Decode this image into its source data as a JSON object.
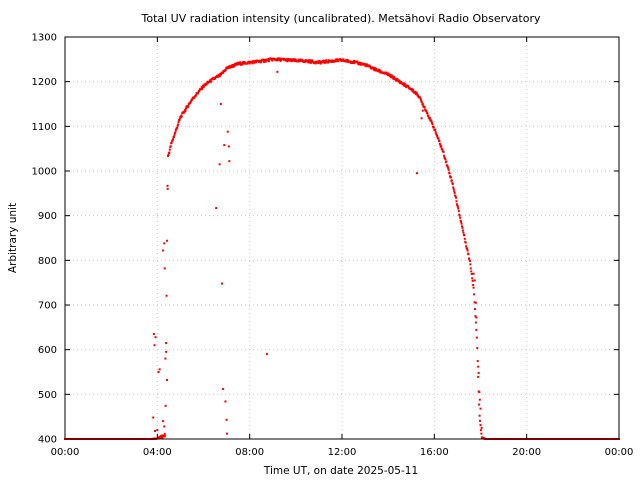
{
  "chart_data": {
    "type": "scatter",
    "title": "Total UV radiation intensity (uncalibrated). Metsähovi Radio Observatory",
    "xlabel": "Time UT, on date 2025-05-11",
    "ylabel": "Arbitrary unit",
    "xlim": [
      "00:00",
      "24:00"
    ],
    "ylim": [
      400,
      1300
    ],
    "x_ticks": [
      "00:00",
      "04:00",
      "08:00",
      "12:00",
      "16:00",
      "20:00",
      "00:00"
    ],
    "y_ticks": [
      400,
      500,
      600,
      700,
      800,
      900,
      1000,
      1100,
      1200,
      1300
    ],
    "grid": true,
    "marker_color": "#ff0000",
    "series": [
      {
        "x_unit": "hours UT",
        "profile": [
          [
            0.0,
            400
          ],
          [
            3.75,
            400
          ],
          [
            4.0,
            401
          ],
          [
            4.25,
            405
          ],
          [
            4.35,
            410
          ],
          [
            4.45,
            1030
          ],
          [
            4.6,
            1060
          ],
          [
            4.8,
            1090
          ],
          [
            5.0,
            1120
          ],
          [
            5.25,
            1140
          ],
          [
            5.5,
            1160
          ],
          [
            5.75,
            1175
          ],
          [
            6.0,
            1190
          ],
          [
            6.25,
            1200
          ],
          [
            6.5,
            1208
          ],
          [
            6.75,
            1215
          ],
          [
            7.0,
            1230
          ],
          [
            7.5,
            1240
          ],
          [
            8.0,
            1243
          ],
          [
            8.5,
            1246
          ],
          [
            9.0,
            1250
          ],
          [
            9.5,
            1249
          ],
          [
            10.0,
            1247
          ],
          [
            10.5,
            1246
          ],
          [
            11.0,
            1243
          ],
          [
            11.5,
            1246
          ],
          [
            12.0,
            1248
          ],
          [
            12.5,
            1244
          ],
          [
            13.0,
            1238
          ],
          [
            13.5,
            1226
          ],
          [
            14.0,
            1216
          ],
          [
            14.5,
            1200
          ],
          [
            15.0,
            1183
          ],
          [
            15.3,
            1170
          ],
          [
            15.6,
            1140
          ],
          [
            16.0,
            1095
          ],
          [
            16.4,
            1040
          ],
          [
            16.8,
            970
          ],
          [
            17.1,
            900
          ],
          [
            17.4,
            830
          ],
          [
            17.55,
            795
          ],
          [
            17.7,
            740
          ],
          [
            17.85,
            620
          ],
          [
            17.95,
            460
          ],
          [
            18.05,
            405
          ],
          [
            18.2,
            400
          ],
          [
            24.0,
            400
          ]
        ],
        "outliers": [
          [
            3.82,
            448
          ],
          [
            3.85,
            635
          ],
          [
            3.88,
            610
          ],
          [
            3.92,
            628
          ],
          [
            4.05,
            550
          ],
          [
            4.1,
            556
          ],
          [
            4.2,
            408
          ],
          [
            4.25,
            822
          ],
          [
            4.3,
            838
          ],
          [
            4.32,
            782
          ],
          [
            4.35,
            580
          ],
          [
            4.38,
            615
          ],
          [
            4.42,
            532
          ],
          [
            4.45,
            960
          ],
          [
            4.25,
            440
          ],
          [
            4.3,
            428
          ],
          [
            3.9,
            418
          ],
          [
            4.0,
            420
          ],
          [
            6.55,
            917
          ],
          [
            6.7,
            1015
          ],
          [
            6.75,
            1150
          ],
          [
            6.8,
            748
          ],
          [
            6.85,
            512
          ],
          [
            6.9,
            1058
          ],
          [
            6.95,
            484
          ],
          [
            7.0,
            443
          ],
          [
            7.02,
            412
          ],
          [
            7.05,
            1088
          ],
          [
            7.1,
            1055
          ],
          [
            7.12,
            1022
          ],
          [
            8.75,
            590
          ],
          [
            9.2,
            1222
          ],
          [
            15.25,
            995
          ],
          [
            15.45,
            1118
          ],
          [
            15.5,
            1135
          ],
          [
            17.7,
            770
          ],
          [
            17.75,
            755
          ],
          [
            17.8,
            705
          ],
          [
            17.82,
            672
          ],
          [
            17.9,
            562
          ],
          [
            17.92,
            548
          ],
          [
            17.95,
            505
          ],
          [
            17.97,
            488
          ],
          [
            18.0,
            468
          ],
          [
            18.05,
            425
          ]
        ]
      }
    ]
  }
}
